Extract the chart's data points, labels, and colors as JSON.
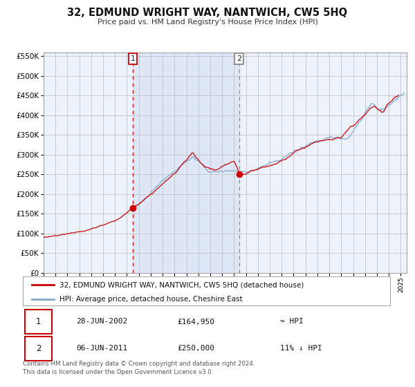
{
  "title": "32, EDMUND WRIGHT WAY, NANTWICH, CW5 5HQ",
  "subtitle": "Price paid vs. HM Land Registry's House Price Index (HPI)",
  "background_color": "#ffffff",
  "plot_bg_color": "#eef2fb",
  "grid_color": "#bbbbbb",
  "hpi_color": "#7eaacc",
  "price_color": "#cc0000",
  "ylim": [
    0,
    560000
  ],
  "yticks": [
    0,
    50000,
    100000,
    150000,
    200000,
    250000,
    300000,
    350000,
    400000,
    450000,
    500000,
    550000
  ],
  "sale1_date": 2002.49,
  "sale1_price": 164950,
  "sale2_date": 2011.43,
  "sale2_price": 250000,
  "legend_label1": "32, EDMUND WRIGHT WAY, NANTWICH, CW5 5HQ (detached house)",
  "legend_label2": "HPI: Average price, detached house, Cheshire East",
  "table_row1": [
    "1",
    "28-JUN-2002",
    "£164,950",
    "≈ HPI"
  ],
  "table_row2": [
    "2",
    "06-JUN-2011",
    "£250,000",
    "11% ↓ HPI"
  ],
  "footer": "Contains HM Land Registry data © Crown copyright and database right 2024.\nThis data is licensed under the Open Government Licence v3.0.",
  "xmin": 1995.0,
  "xmax": 2025.5
}
